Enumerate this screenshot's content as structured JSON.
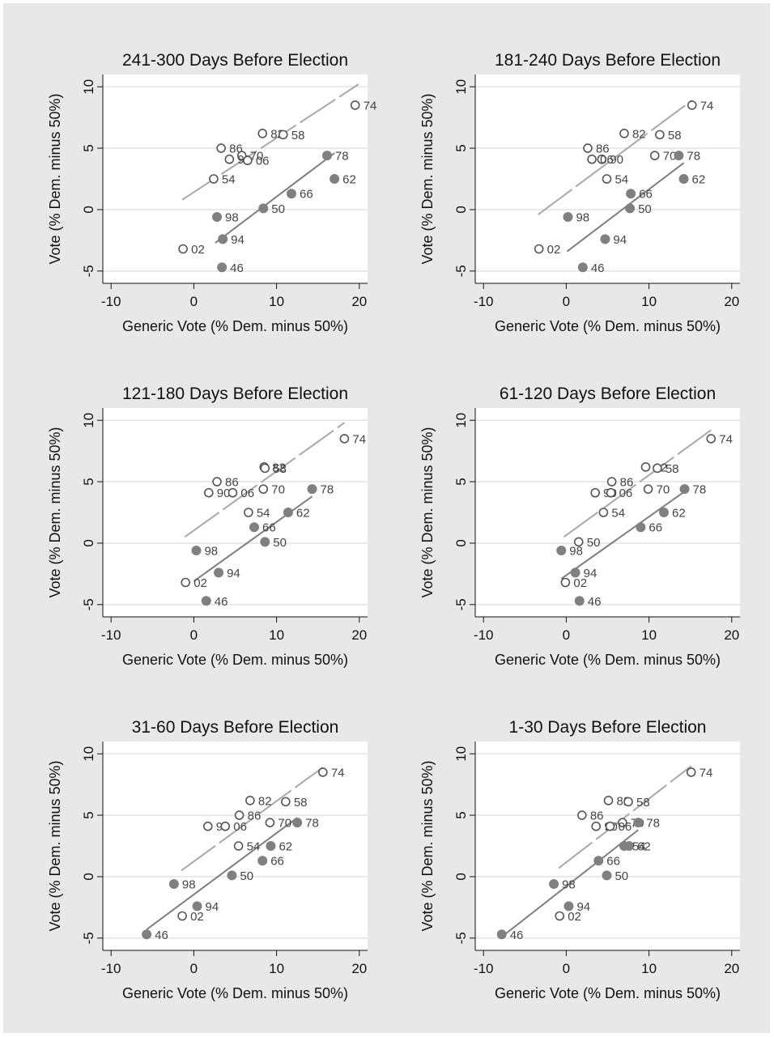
{
  "chart_data": [
    {
      "type": "scatter",
      "title": "241-300 Days Before Election",
      "xlabel": "Generic Vote (% Dem. minus 50%)",
      "ylabel": "Vote (% Dem. minus 50%)",
      "xlim": [
        -11,
        21
      ],
      "ylim": [
        -6,
        11
      ],
      "xticks": [
        -10,
        0,
        10,
        20
      ],
      "yticks": [
        -5,
        0,
        5,
        10
      ],
      "grid": true,
      "colors": {
        "open": "#555555",
        "filled": "#808080",
        "open_fit": "#a8a8a8",
        "filled_fit": "#7e7e7e"
      },
      "series": [
        {
          "marker": "open",
          "points": [
            {
              "label": "74",
              "x": 19.5,
              "y": 8.5
            },
            {
              "label": "82",
              "x": 8.3,
              "y": 6.2
            },
            {
              "label": "58",
              "x": 10.8,
              "y": 6.1
            },
            {
              "label": "86",
              "x": 3.3,
              "y": 5.0
            },
            {
              "label": "70",
              "x": 5.8,
              "y": 4.4
            },
            {
              "label": "90",
              "x": 4.3,
              "y": 4.1
            },
            {
              "label": "06",
              "x": 6.5,
              "y": 4.0
            },
            {
              "label": "54",
              "x": 2.4,
              "y": 2.5
            },
            {
              "label": "02",
              "x": -1.3,
              "y": -3.2
            }
          ]
        },
        {
          "marker": "filled",
          "points": [
            {
              "label": "78",
              "x": 16.1,
              "y": 4.4
            },
            {
              "label": "62",
              "x": 17.0,
              "y": 2.5
            },
            {
              "label": "66",
              "x": 11.8,
              "y": 1.3
            },
            {
              "label": "50",
              "x": 8.4,
              "y": 0.1
            },
            {
              "label": "98",
              "x": 2.8,
              "y": -0.6
            },
            {
              "label": "94",
              "x": 3.5,
              "y": -2.4
            },
            {
              "label": "46",
              "x": 3.4,
              "y": -4.7
            }
          ]
        }
      ],
      "fit_lines": [
        {
          "marker": "open",
          "style": "dashed",
          "x": [
            -1.4,
            19.9
          ],
          "y": [
            0.8,
            10.2
          ]
        },
        {
          "marker": "filled",
          "style": "solid",
          "x": [
            2.6,
            17.0
          ],
          "y": [
            -2.7,
            4.6
          ]
        }
      ]
    },
    {
      "type": "scatter",
      "title": "181-240 Days Before Election",
      "xlabel": "Generic Vote (% Dem. minus 50%)",
      "ylabel": "Vote (% Dem. minus 50%)",
      "xlim": [
        -11,
        21
      ],
      "ylim": [
        -6,
        11
      ],
      "xticks": [
        -10,
        0,
        10,
        20
      ],
      "yticks": [
        -5,
        0,
        5,
        10
      ],
      "grid": true,
      "colors": {
        "open": "#555555",
        "filled": "#808080",
        "open_fit": "#a8a8a8",
        "filled_fit": "#7e7e7e"
      },
      "series": [
        {
          "marker": "open",
          "points": [
            {
              "label": "74",
              "x": 15.2,
              "y": 8.5
            },
            {
              "label": "82",
              "x": 7.0,
              "y": 6.2
            },
            {
              "label": "58",
              "x": 11.3,
              "y": 6.1
            },
            {
              "label": "86",
              "x": 2.6,
              "y": 5.0
            },
            {
              "label": "70",
              "x": 10.7,
              "y": 4.4
            },
            {
              "label": "90",
              "x": 4.3,
              "y": 4.1
            },
            {
              "label": "06",
              "x": 3.1,
              "y": 4.1
            },
            {
              "label": "54",
              "x": 4.9,
              "y": 2.5
            },
            {
              "label": "02",
              "x": -3.3,
              "y": -3.2
            }
          ]
        },
        {
          "marker": "filled",
          "points": [
            {
              "label": "78",
              "x": 13.6,
              "y": 4.4
            },
            {
              "label": "62",
              "x": 14.2,
              "y": 2.5
            },
            {
              "label": "66",
              "x": 7.8,
              "y": 1.3
            },
            {
              "label": "50",
              "x": 7.7,
              "y": 0.1
            },
            {
              "label": "98",
              "x": 0.2,
              "y": -0.6
            },
            {
              "label": "94",
              "x": 4.7,
              "y": -2.4
            },
            {
              "label": "46",
              "x": 2.0,
              "y": -4.7
            }
          ]
        }
      ],
      "fit_lines": [
        {
          "marker": "open",
          "style": "dashed",
          "x": [
            -3.4,
            15.2
          ],
          "y": [
            -0.4,
            8.9
          ]
        },
        {
          "marker": "filled",
          "style": "solid",
          "x": [
            0.1,
            14.2
          ],
          "y": [
            -3.4,
            3.8
          ]
        }
      ]
    },
    {
      "type": "scatter",
      "title": "121-180 Days Before Election",
      "xlabel": "Generic Vote (% Dem. minus 50%)",
      "ylabel": "Vote (% Dem. minus 50%)",
      "xlim": [
        -11,
        21
      ],
      "ylim": [
        -6,
        11
      ],
      "xticks": [
        -10,
        0,
        10,
        20
      ],
      "yticks": [
        -5,
        0,
        5,
        10
      ],
      "grid": true,
      "colors": {
        "open": "#555555",
        "filled": "#808080",
        "open_fit": "#a8a8a8",
        "filled_fit": "#7e7e7e"
      },
      "series": [
        {
          "marker": "open",
          "points": [
            {
              "label": "74",
              "x": 18.2,
              "y": 8.5
            },
            {
              "label": "82",
              "x": 8.5,
              "y": 6.2
            },
            {
              "label": "58",
              "x": 8.6,
              "y": 6.1
            },
            {
              "label": "86",
              "x": 2.8,
              "y": 5.0
            },
            {
              "label": "70",
              "x": 8.4,
              "y": 4.4
            },
            {
              "label": "90",
              "x": 1.8,
              "y": 4.1
            },
            {
              "label": "06",
              "x": 4.7,
              "y": 4.1
            },
            {
              "label": "54",
              "x": 6.6,
              "y": 2.5
            },
            {
              "label": "02",
              "x": -1.0,
              "y": -3.2
            }
          ]
        },
        {
          "marker": "filled",
          "points": [
            {
              "label": "78",
              "x": 14.3,
              "y": 4.4
            },
            {
              "label": "62",
              "x": 11.4,
              "y": 2.5
            },
            {
              "label": "66",
              "x": 7.3,
              "y": 1.3
            },
            {
              "label": "50",
              "x": 8.6,
              "y": 0.1
            },
            {
              "label": "98",
              "x": 0.3,
              "y": -0.6
            },
            {
              "label": "94",
              "x": 3.0,
              "y": -2.4
            },
            {
              "label": "46",
              "x": 1.5,
              "y": -4.7
            }
          ]
        }
      ],
      "fit_lines": [
        {
          "marker": "open",
          "style": "dashed",
          "x": [
            -1.1,
            18.2
          ],
          "y": [
            0.5,
            9.8
          ]
        },
        {
          "marker": "filled",
          "style": "solid",
          "x": [
            0.0,
            14.3
          ],
          "y": [
            -3.1,
            3.8
          ]
        }
      ]
    },
    {
      "type": "scatter",
      "title": "61-120 Days Before Election",
      "xlabel": "Generic Vote (% Dem. minus 50%)",
      "ylabel": "Vote (% Dem. minus 50%)",
      "xlim": [
        -11,
        21
      ],
      "ylim": [
        -6,
        11
      ],
      "xticks": [
        -10,
        0,
        10,
        20
      ],
      "yticks": [
        -5,
        0,
        5,
        10
      ],
      "grid": true,
      "colors": {
        "open": "#555555",
        "filled": "#808080",
        "open_fit": "#a8a8a8",
        "filled_fit": "#7e7e7e"
      },
      "series": [
        {
          "marker": "open",
          "points": [
            {
              "label": "74",
              "x": 17.5,
              "y": 8.5
            },
            {
              "label": "82",
              "x": 9.6,
              "y": 6.2
            },
            {
              "label": "58",
              "x": 11.0,
              "y": 6.1
            },
            {
              "label": "86",
              "x": 5.5,
              "y": 5.0
            },
            {
              "label": "70",
              "x": 9.9,
              "y": 4.4
            },
            {
              "label": "90",
              "x": 3.5,
              "y": 4.1
            },
            {
              "label": "06",
              "x": 5.4,
              "y": 4.1
            },
            {
              "label": "54",
              "x": 4.5,
              "y": 2.5
            },
            {
              "label": "50",
              "x": 1.5,
              "y": 0.1
            },
            {
              "label": "02",
              "x": -0.1,
              "y": -3.2
            }
          ]
        },
        {
          "marker": "filled",
          "points": [
            {
              "label": "78",
              "x": 14.3,
              "y": 4.4
            },
            {
              "label": "62",
              "x": 11.8,
              "y": 2.5
            },
            {
              "label": "66",
              "x": 9.0,
              "y": 1.3
            },
            {
              "label": "98",
              "x": -0.6,
              "y": -0.6
            },
            {
              "label": "94",
              "x": 1.1,
              "y": -2.4
            },
            {
              "label": "46",
              "x": 1.6,
              "y": -4.7
            }
          ]
        }
      ],
      "fit_lines": [
        {
          "marker": "open",
          "style": "dashed",
          "x": [
            -0.3,
            17.5
          ],
          "y": [
            0.5,
            9.2
          ]
        },
        {
          "marker": "filled",
          "style": "solid",
          "x": [
            -0.6,
            14.3
          ],
          "y": [
            -2.9,
            4.2
          ]
        }
      ]
    },
    {
      "type": "scatter",
      "title": "31-60 Days Before Election",
      "xlabel": "Generic Vote (% Dem. minus 50%)",
      "ylabel": "Vote (% Dem. minus 50%)",
      "xlim": [
        -11,
        21
      ],
      "ylim": [
        -6,
        11
      ],
      "xticks": [
        -10,
        0,
        10,
        20
      ],
      "yticks": [
        -5,
        0,
        5,
        10
      ],
      "grid": true,
      "colors": {
        "open": "#555555",
        "filled": "#808080",
        "open_fit": "#a8a8a8",
        "filled_fit": "#7e7e7e"
      },
      "series": [
        {
          "marker": "open",
          "points": [
            {
              "label": "74",
              "x": 15.6,
              "y": 8.5
            },
            {
              "label": "82",
              "x": 6.8,
              "y": 6.2
            },
            {
              "label": "58",
              "x": 11.1,
              "y": 6.1
            },
            {
              "label": "86",
              "x": 5.5,
              "y": 5.0
            },
            {
              "label": "70",
              "x": 9.2,
              "y": 4.4
            },
            {
              "label": "90",
              "x": 1.7,
              "y": 4.1
            },
            {
              "label": "06",
              "x": 3.8,
              "y": 4.1
            },
            {
              "label": "54",
              "x": 5.4,
              "y": 2.5
            },
            {
              "label": "02",
              "x": -1.4,
              "y": -3.2
            }
          ]
        },
        {
          "marker": "filled",
          "points": [
            {
              "label": "78",
              "x": 12.5,
              "y": 4.4
            },
            {
              "label": "62",
              "x": 9.3,
              "y": 2.5
            },
            {
              "label": "66",
              "x": 8.3,
              "y": 1.3
            },
            {
              "label": "50",
              "x": 4.6,
              "y": 0.1
            },
            {
              "label": "98",
              "x": -2.4,
              "y": -0.6
            },
            {
              "label": "94",
              "x": 0.4,
              "y": -2.4
            },
            {
              "label": "46",
              "x": -5.7,
              "y": -4.7
            }
          ]
        }
      ],
      "fit_lines": [
        {
          "marker": "open",
          "style": "dashed",
          "x": [
            -1.5,
            15.6
          ],
          "y": [
            0.5,
            8.9
          ]
        },
        {
          "marker": "filled",
          "style": "solid",
          "x": [
            -5.7,
            12.5
          ],
          "y": [
            -4.3,
            4.8
          ]
        }
      ]
    },
    {
      "type": "scatter",
      "title": "1-30 Days Before Election",
      "xlabel": "Generic Vote (% Dem. minus 50%)",
      "ylabel": "Vote (% Dem. minus 50%)",
      "xlim": [
        -11,
        21
      ],
      "ylim": [
        -6,
        11
      ],
      "xticks": [
        -10,
        0,
        10,
        20
      ],
      "yticks": [
        -5,
        0,
        5,
        10
      ],
      "grid": true,
      "colors": {
        "open": "#555555",
        "filled": "#808080",
        "open_fit": "#a8a8a8",
        "filled_fit": "#7e7e7e"
      },
      "series": [
        {
          "marker": "open",
          "points": [
            {
              "label": "74",
              "x": 15.1,
              "y": 8.5
            },
            {
              "label": "82",
              "x": 5.1,
              "y": 6.2
            },
            {
              "label": "58",
              "x": 7.5,
              "y": 6.1
            },
            {
              "label": "86",
              "x": 1.9,
              "y": 5.0
            },
            {
              "label": "70",
              "x": 6.8,
              "y": 4.4
            },
            {
              "label": "90",
              "x": 3.6,
              "y": 4.1
            },
            {
              "label": "06",
              "x": 5.3,
              "y": 4.1
            },
            {
              "label": "02",
              "x": -0.8,
              "y": -3.2
            }
          ]
        },
        {
          "marker": "filled",
          "points": [
            {
              "label": "78",
              "x": 8.7,
              "y": 4.4
            },
            {
              "label": "62",
              "x": 7.6,
              "y": 2.5
            },
            {
              "label": "54",
              "x": 7.0,
              "y": 2.5
            },
            {
              "label": "66",
              "x": 3.9,
              "y": 1.3
            },
            {
              "label": "50",
              "x": 4.9,
              "y": 0.1
            },
            {
              "label": "98",
              "x": -1.5,
              "y": -0.6
            },
            {
              "label": "94",
              "x": 0.3,
              "y": -2.4
            },
            {
              "label": "46",
              "x": -7.8,
              "y": -4.7
            }
          ]
        }
      ],
      "fit_lines": [
        {
          "marker": "open",
          "style": "dashed",
          "x": [
            -0.9,
            15.1
          ],
          "y": [
            0.7,
            9.0
          ]
        },
        {
          "marker": "filled",
          "style": "solid",
          "x": [
            -7.8,
            8.7
          ],
          "y": [
            -4.9,
            3.8
          ]
        }
      ]
    }
  ]
}
